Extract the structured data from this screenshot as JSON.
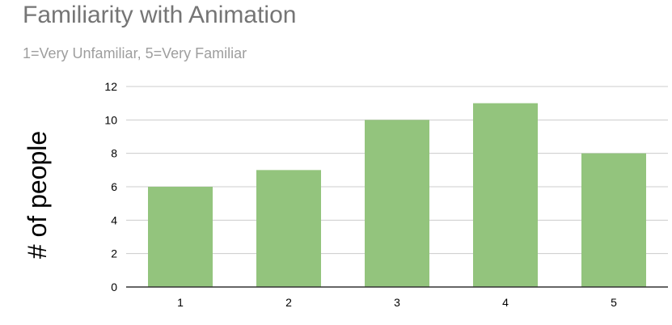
{
  "chart_data": {
    "type": "bar",
    "title": "Familiarity with Animation",
    "subtitle": "1=Very Unfamiliar, 5=Very Familiar",
    "xlabel": "",
    "ylabel": "# of people",
    "categories": [
      "1",
      "2",
      "3",
      "4",
      "5"
    ],
    "values": [
      6,
      7,
      10,
      11,
      8
    ],
    "ylim": [
      0,
      12
    ],
    "yticks": [
      0,
      2,
      4,
      6,
      8,
      10,
      12
    ],
    "grid": true,
    "legend": "none",
    "colors": {
      "bar": "#93c47d",
      "grid": "#cccccc",
      "axis": "#333333",
      "tick_text": "#000000"
    }
  }
}
